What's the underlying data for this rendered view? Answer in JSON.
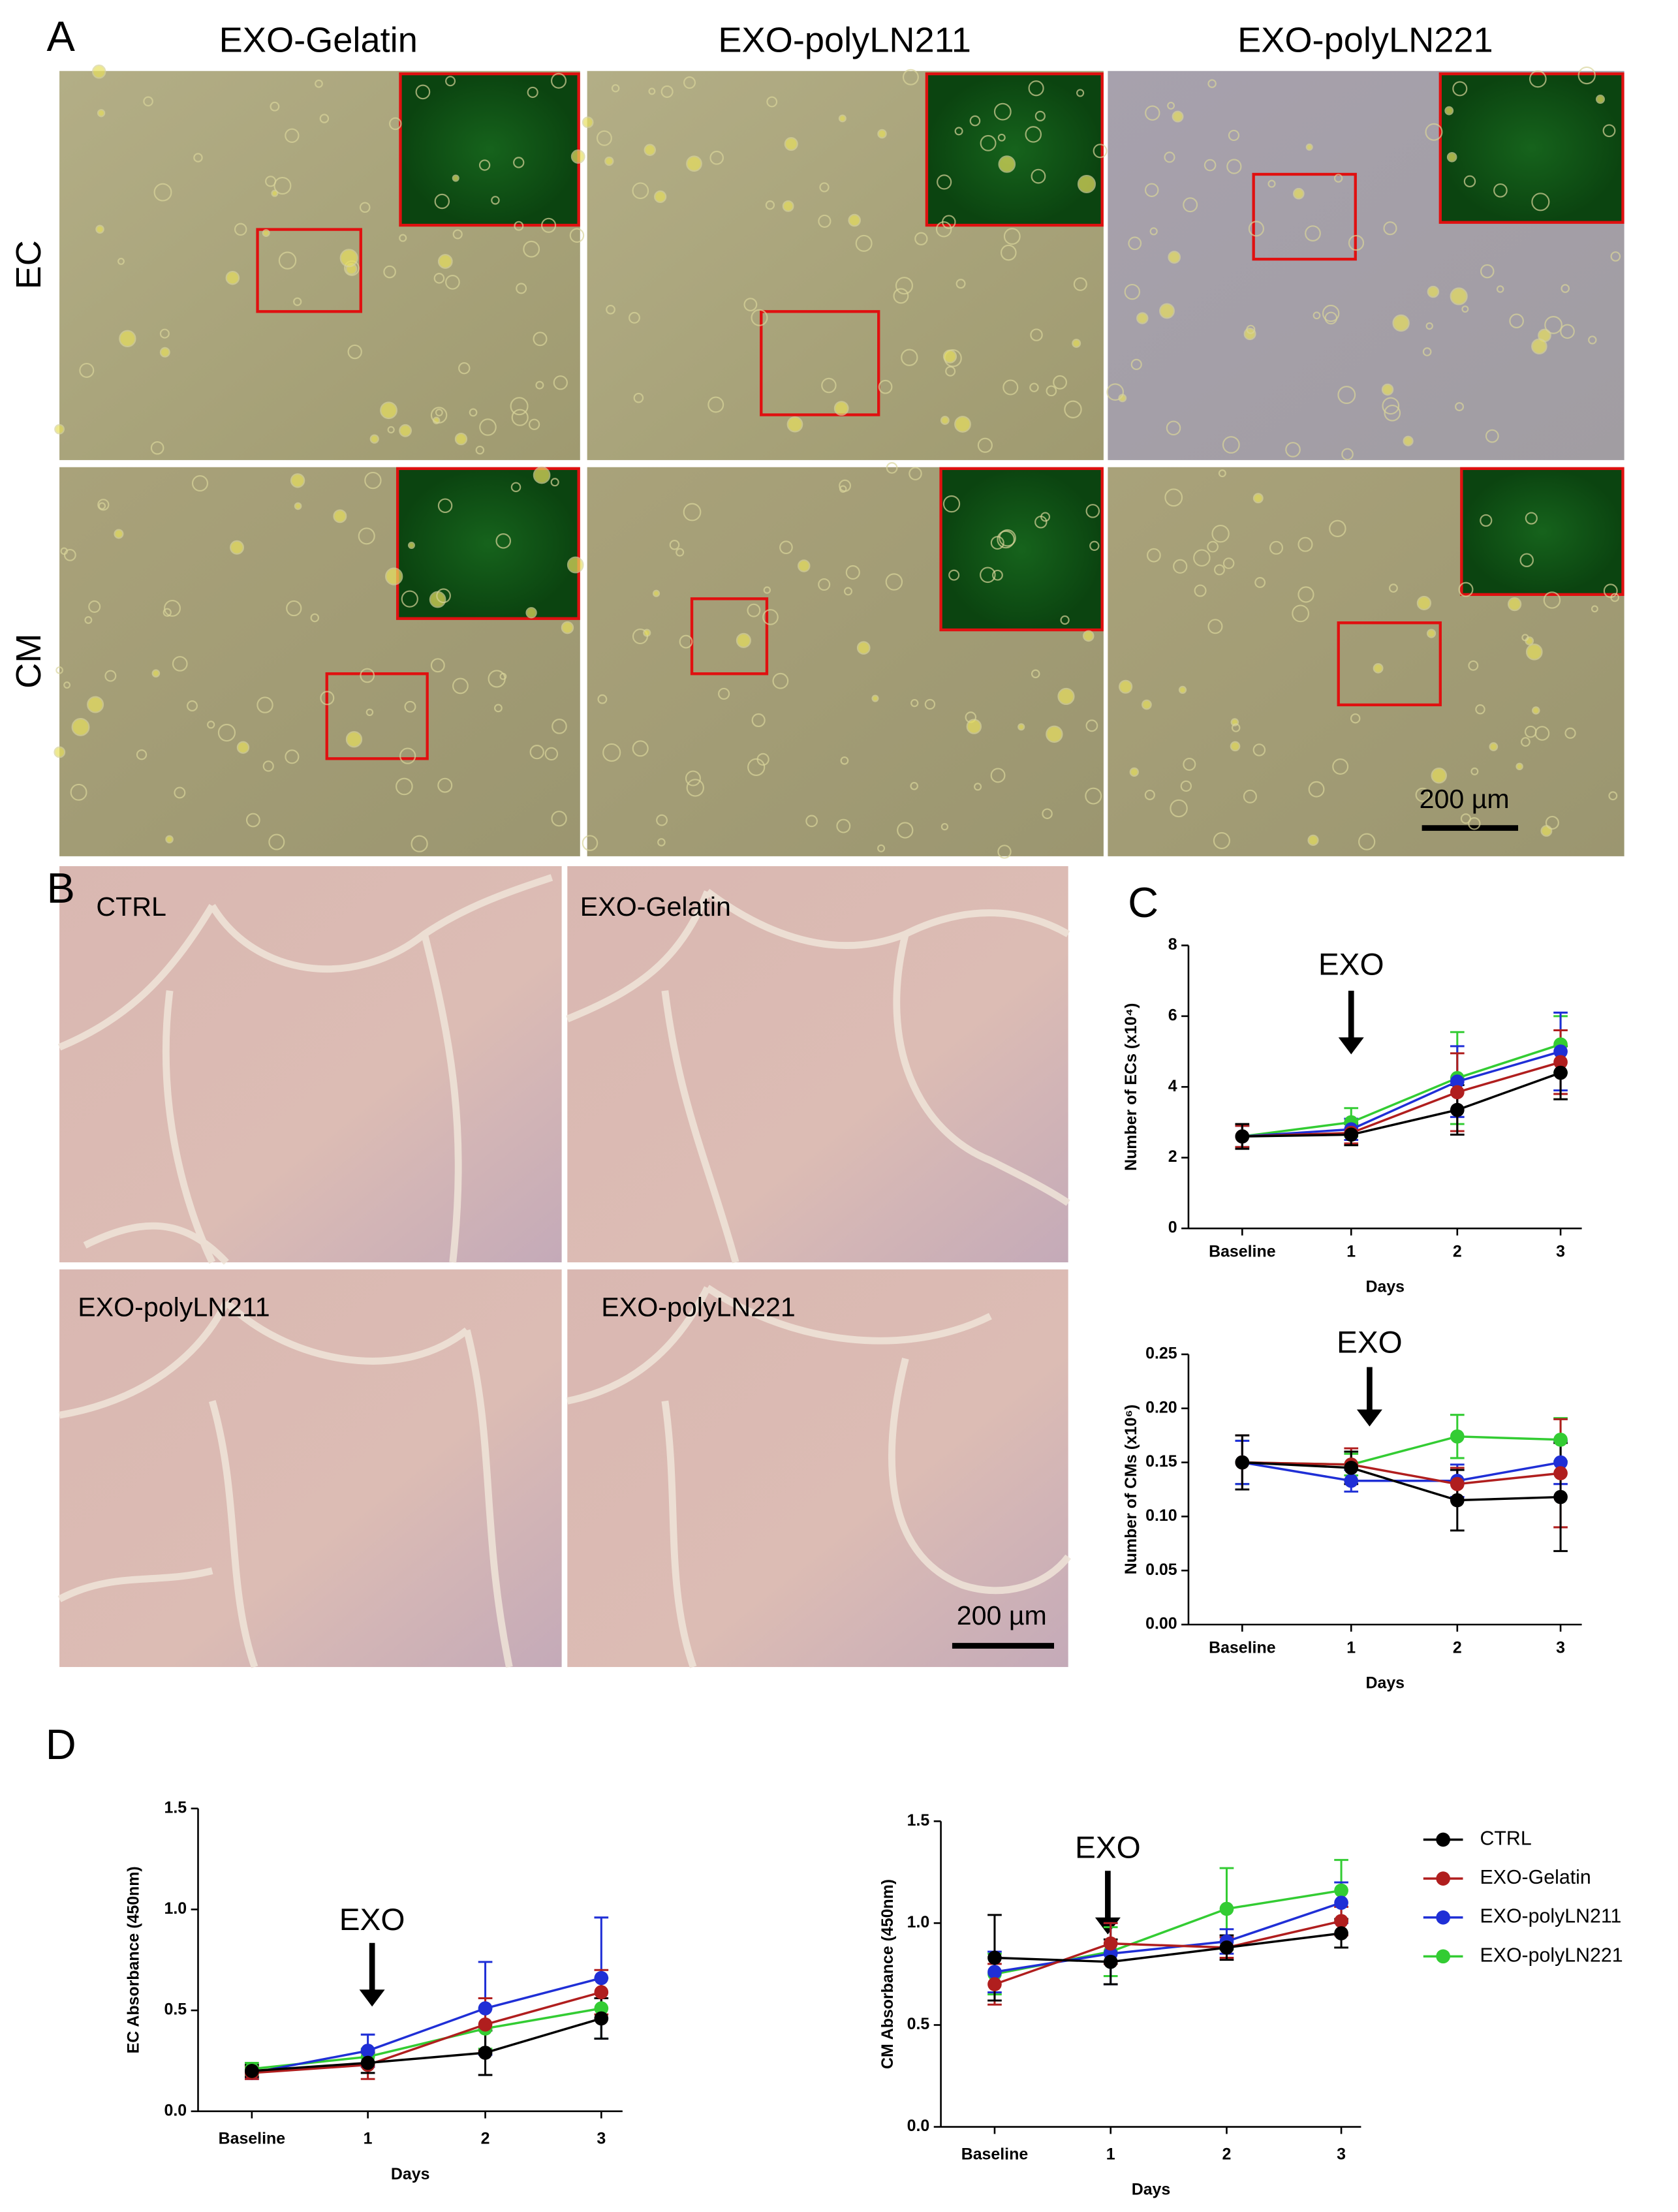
{
  "panel_labels": [
    "A",
    "B",
    "C",
    "D"
  ],
  "panel_a": {
    "columns": [
      "EXO-Gelatin",
      "EXO-polyLN211",
      "EXO-polyLN221"
    ],
    "rows": [
      "EC",
      "CM"
    ],
    "scale_bar": "200 µm"
  },
  "panel_b": {
    "images": [
      "CTRL",
      "EXO-Gelatin",
      "EXO-polyLN211",
      "EXO-polyLN221"
    ],
    "scale_bar": "200 µm"
  },
  "chart_data": [
    {
      "type": "line",
      "ylabel": "Number of ECs (x10⁴)",
      "xlabel": "Days",
      "annotation": "EXO",
      "categories": [
        "Baseline",
        "1",
        "2",
        "3"
      ],
      "ylim": [
        0,
        8
      ],
      "yticks": [
        0,
        2,
        4,
        6,
        8
      ],
      "series": [
        {
          "color": "#000000",
          "values": [
            2.6,
            2.65,
            3.35,
            4.4
          ],
          "errors": [
            0.35,
            0.3,
            0.7,
            0.75
          ]
        },
        {
          "color": "#b01e1e",
          "values": [
            2.6,
            2.7,
            3.85,
            4.7
          ],
          "errors": [
            0.3,
            0.3,
            1.1,
            0.9
          ]
        },
        {
          "color": "#1f2fd6",
          "values": [
            2.6,
            2.8,
            4.15,
            5.0
          ],
          "errors": [
            0.3,
            0.3,
            1.0,
            1.1
          ]
        },
        {
          "color": "#33cc33",
          "values": [
            2.6,
            3.0,
            4.25,
            5.2
          ],
          "errors": [
            0.3,
            0.4,
            1.3,
            0.8
          ]
        }
      ]
    },
    {
      "type": "line",
      "ylabel": "Number of CMs (x10⁶)",
      "xlabel": "Days",
      "annotation": "EXO",
      "categories": [
        "Baseline",
        "1",
        "2",
        "3"
      ],
      "ylim": [
        0,
        0.25
      ],
      "yticks": [
        {
          "value": 0,
          "label": "0.00"
        },
        0.05,
        {
          "value": 0.1,
          "label": "0.10"
        },
        0.15,
        {
          "value": 0.2,
          "label": "0.20"
        },
        0.25
      ],
      "series": [
        {
          "color": "#000000",
          "values": [
            0.15,
            0.145,
            0.115,
            0.118
          ],
          "errors": [
            0.025,
            0.015,
            0.028,
            0.05
          ]
        },
        {
          "color": "#b01e1e",
          "values": [
            0.15,
            0.148,
            0.13,
            0.14
          ],
          "errors": [
            0.025,
            0.015,
            0.015,
            0.05
          ]
        },
        {
          "color": "#1f2fd6",
          "values": [
            0.15,
            0.133,
            0.133,
            0.15
          ],
          "errors": [
            0.02,
            0.01,
            0.015,
            0.02
          ]
        },
        {
          "color": "#33cc33",
          "values": [
            0.15,
            0.148,
            0.174,
            0.171
          ],
          "errors": [
            0.02,
            0.01,
            0.02,
            0.02
          ]
        }
      ]
    },
    {
      "type": "line",
      "ylabel": "EC Absorbance (450nm)",
      "xlabel": "Days",
      "annotation": "EXO",
      "categories": [
        "Baseline",
        "1",
        "2",
        "3"
      ],
      "ylim": [
        0,
        1.5
      ],
      "yticks": [
        {
          "value": 0,
          "label": "0.0"
        },
        0.5,
        {
          "value": 1,
          "label": "1.0"
        },
        1.5
      ],
      "series": [
        {
          "color": "#000000",
          "values": [
            0.2,
            0.24,
            0.29,
            0.46
          ],
          "errors": [
            0.03,
            0.05,
            0.11,
            0.1
          ]
        },
        {
          "color": "#b01e1e",
          "values": [
            0.19,
            0.23,
            0.43,
            0.59
          ],
          "errors": [
            0.03,
            0.07,
            0.13,
            0.11
          ]
        },
        {
          "color": "#1f2fd6",
          "values": [
            0.19,
            0.3,
            0.51,
            0.66
          ],
          "errors": [
            0.03,
            0.08,
            0.23,
            0.3
          ]
        },
        {
          "color": "#33cc33",
          "values": [
            0.21,
            0.27,
            0.41,
            0.51
          ],
          "errors": [
            0.03,
            0.04,
            0.1,
            0.15
          ]
        }
      ]
    },
    {
      "type": "line",
      "ylabel": "CM Absorbance (450nm)",
      "xlabel": "Days",
      "annotation": "EXO",
      "categories": [
        "Baseline",
        "1",
        "2",
        "3"
      ],
      "ylim": [
        0,
        1.5
      ],
      "yticks": [
        {
          "value": 0,
          "label": "0.0"
        },
        0.5,
        {
          "value": 1,
          "label": "1.0"
        },
        1.5
      ],
      "legend": "right",
      "series": [
        {
          "name": "CTRL",
          "color": "#000000",
          "values": [
            0.83,
            0.81,
            0.88,
            0.95
          ],
          "errors": [
            0.21,
            0.11,
            0.06,
            0.07
          ]
        },
        {
          "name": "EXO-Gelatin",
          "color": "#b01e1e",
          "values": [
            0.7,
            0.9,
            0.88,
            1.01
          ],
          "errors": [
            0.1,
            0.1,
            0.05,
            0.07
          ]
        },
        {
          "name": "EXO-polyLN211",
          "color": "#1f2fd6",
          "values": [
            0.76,
            0.85,
            0.91,
            1.1
          ],
          "errors": [
            0.1,
            0.15,
            0.06,
            0.1
          ]
        },
        {
          "name": "EXO-polyLN221",
          "color": "#33cc33",
          "values": [
            0.75,
            0.86,
            1.07,
            1.16
          ],
          "errors": [
            0.1,
            0.12,
            0.2,
            0.15
          ]
        }
      ]
    }
  ]
}
